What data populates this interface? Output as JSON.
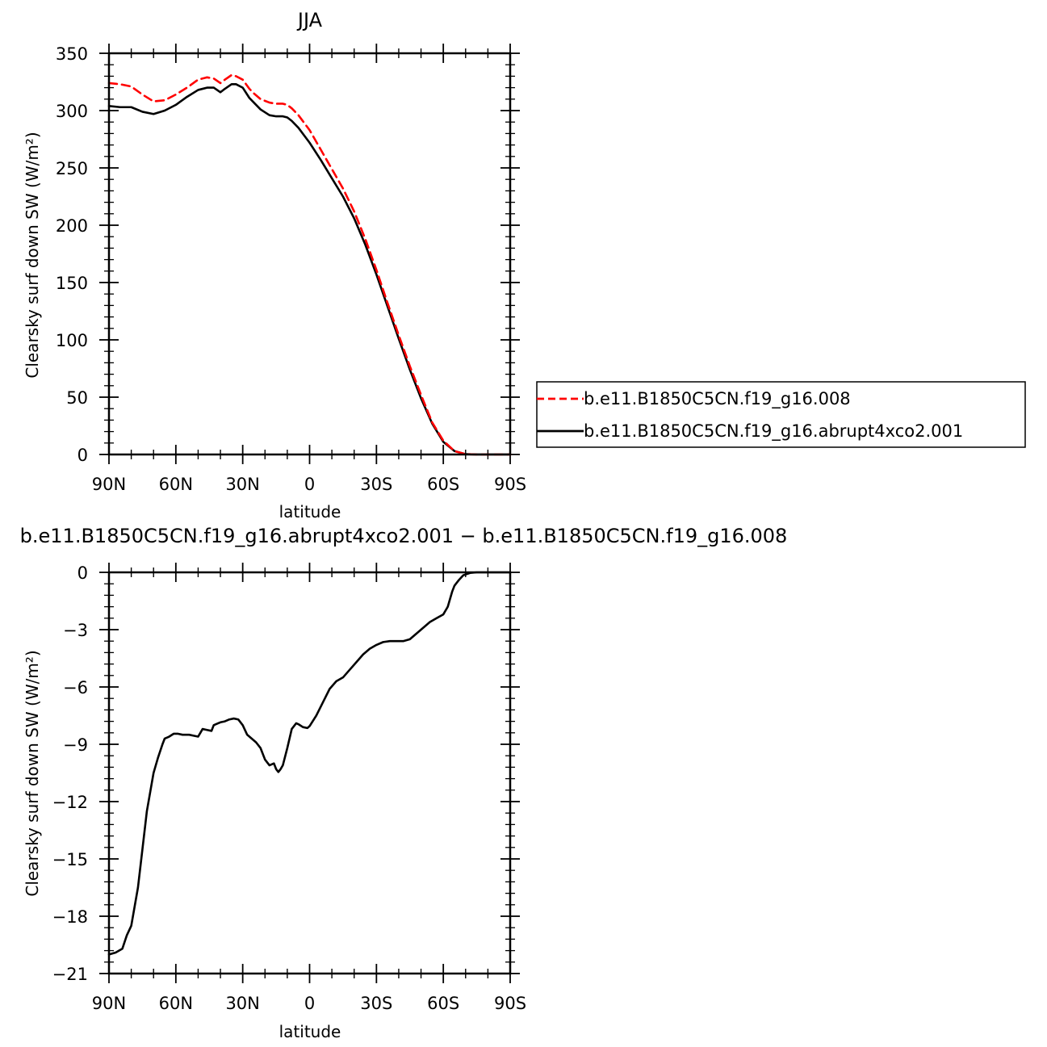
{
  "chart_data": [
    {
      "type": "line",
      "title": "JJA",
      "xlabel": "latitude",
      "ylabel": "Clearsky surf down SW (W/m²)",
      "xlim": [
        90,
        -90
      ],
      "ylim": [
        0,
        350
      ],
      "x_ticks": [
        {
          "value": 90,
          "label": "90N"
        },
        {
          "value": 60,
          "label": "60N"
        },
        {
          "value": 30,
          "label": "30N"
        },
        {
          "value": 0,
          "label": "0"
        },
        {
          "value": -30,
          "label": "30S"
        },
        {
          "value": -60,
          "label": "60S"
        },
        {
          "value": -90,
          "label": "90S"
        }
      ],
      "y_ticks": [
        0,
        50,
        100,
        150,
        200,
        250,
        300,
        350
      ],
      "legend_position": "right",
      "series": [
        {
          "name": "b.e11.B1850C5CN.f19_g16.008",
          "color": "#ff0000",
          "dash": "dashed",
          "x": [
            90,
            85,
            80,
            75,
            70,
            65,
            60,
            55,
            50,
            46,
            43,
            40,
            38,
            35,
            33,
            30,
            27,
            25,
            22,
            18,
            15,
            12,
            10,
            8,
            5,
            0,
            -5,
            -10,
            -15,
            -20,
            -25,
            -30,
            -35,
            -40,
            -45,
            -50,
            -55,
            -60,
            -65,
            -70,
            -75,
            -80,
            -85,
            -90
          ],
          "values": [
            324,
            323,
            321,
            314,
            308,
            309,
            314,
            320,
            327,
            329,
            328,
            324,
            327,
            331,
            330,
            327,
            319,
            315,
            310,
            307,
            306,
            306,
            305,
            302,
            296,
            283,
            266,
            249,
            232,
            212,
            188,
            161,
            132,
            104,
            77,
            52,
            28,
            12,
            3,
            0.3,
            0,
            0,
            0,
            0
          ]
        },
        {
          "name": "b.e11.B1850C5CN.f19_g16.abrupt4xco2.001",
          "color": "#000000",
          "dash": "solid",
          "x": [
            90,
            85,
            80,
            75,
            70,
            65,
            60,
            55,
            50,
            46,
            43,
            40,
            38,
            35,
            33,
            30,
            27,
            25,
            22,
            18,
            15,
            12,
            10,
            8,
            5,
            0,
            -5,
            -10,
            -15,
            -20,
            -25,
            -30,
            -35,
            -40,
            -45,
            -50,
            -55,
            -60,
            -65,
            -70,
            -75,
            -80,
            -85,
            -90
          ],
          "values": [
            304,
            303,
            303,
            299,
            297,
            300,
            305,
            312,
            318,
            320,
            320,
            316,
            319,
            323,
            323,
            320,
            311,
            307,
            301,
            296,
            295,
            295,
            294,
            291,
            285,
            272,
            257,
            241,
            225,
            206,
            183,
            157,
            129,
            101,
            74,
            49,
            27,
            11,
            3,
            0.3,
            0,
            0,
            0,
            0
          ]
        }
      ]
    },
    {
      "type": "line",
      "title": "b.e11.B1850C5CN.f19_g16.abrupt4xco2.001 − b.e11.B1850C5CN.f19_g16.008",
      "xlabel": "latitude",
      "ylabel": "Clearsky surf down SW (W/m²)",
      "xlim": [
        90,
        -90
      ],
      "ylim": [
        -21,
        0
      ],
      "x_ticks": [
        {
          "value": 90,
          "label": "90N"
        },
        {
          "value": 60,
          "label": "60N"
        },
        {
          "value": 30,
          "label": "30N"
        },
        {
          "value": 0,
          "label": "0"
        },
        {
          "value": -30,
          "label": "30S"
        },
        {
          "value": -60,
          "label": "60S"
        },
        {
          "value": -90,
          "label": "90S"
        }
      ],
      "y_ticks": [
        0,
        -3,
        -6,
        -9,
        -12,
        -15,
        -18,
        -21
      ],
      "y_tick_labels": [
        "0",
        "−3",
        "−6",
        "−9",
        "−12",
        "−15",
        "−18",
        "−21"
      ],
      "series": [
        {
          "color": "#000000",
          "dash": "solid",
          "x": [
            90,
            87,
            84,
            82,
            80,
            77,
            75,
            73,
            70,
            68,
            66,
            65,
            63,
            61,
            59,
            57,
            54,
            52,
            50,
            49,
            48,
            46,
            44,
            43,
            41,
            40,
            38,
            36,
            34,
            32,
            30,
            28,
            26,
            24,
            22,
            20,
            18,
            16,
            15,
            14,
            13,
            12,
            10,
            8,
            6,
            5,
            3,
            1,
            0,
            -3,
            -6,
            -9,
            -12,
            -15,
            -18,
            -21,
            -24,
            -27,
            -30,
            -33,
            -36,
            -39,
            -42,
            -45,
            -48,
            -51,
            -54,
            -57,
            -60,
            -62,
            -63,
            -64,
            -65,
            -67,
            -69,
            -72,
            -75,
            -80,
            -85,
            -90
          ],
          "values": [
            -20.0,
            -19.9,
            -19.7,
            -19.0,
            -18.5,
            -16.5,
            -14.5,
            -12.5,
            -10.5,
            -9.7,
            -9.0,
            -8.7,
            -8.6,
            -8.45,
            -8.45,
            -8.5,
            -8.5,
            -8.55,
            -8.6,
            -8.4,
            -8.2,
            -8.25,
            -8.3,
            -8.0,
            -7.9,
            -7.85,
            -7.8,
            -7.7,
            -7.65,
            -7.7,
            -8.0,
            -8.5,
            -8.7,
            -8.9,
            -9.2,
            -9.8,
            -10.1,
            -10.0,
            -10.3,
            -10.45,
            -10.3,
            -10.1,
            -9.2,
            -8.2,
            -7.9,
            -7.95,
            -8.1,
            -8.15,
            -8.05,
            -7.5,
            -6.8,
            -6.1,
            -5.7,
            -5.5,
            -5.1,
            -4.7,
            -4.3,
            -4.0,
            -3.8,
            -3.65,
            -3.6,
            -3.6,
            -3.6,
            -3.5,
            -3.2,
            -2.9,
            -2.6,
            -2.4,
            -2.2,
            -1.8,
            -1.4,
            -1.0,
            -0.7,
            -0.4,
            -0.15,
            -0.03,
            0,
            0,
            0,
            0
          ]
        }
      ]
    }
  ]
}
